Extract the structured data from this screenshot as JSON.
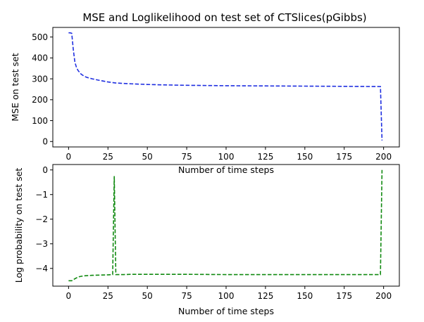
{
  "title": "MSE and Loglikelihood on test set of CTSlices(pGibbs)",
  "chart_data": [
    {
      "type": "line",
      "xlabel": "Number of time steps",
      "ylabel": "MSE on test set",
      "xlim": [
        -10,
        210
      ],
      "ylim": [
        -26,
        546
      ],
      "xticks": [
        0,
        25,
        50,
        75,
        100,
        125,
        150,
        175,
        200
      ],
      "yticks": [
        0,
        100,
        200,
        300,
        400,
        500
      ],
      "grid": false,
      "series": [
        {
          "color": "#1f2fe0",
          "style": "dashed",
          "x": [
            0,
            1,
            2,
            3,
            4,
            5,
            6,
            8,
            10,
            12,
            15,
            20,
            25,
            30,
            40,
            50,
            60,
            75,
            100,
            125,
            150,
            175,
            198,
            199
          ],
          "y": [
            520,
            520,
            518,
            440,
            380,
            355,
            340,
            322,
            312,
            306,
            300,
            292,
            285,
            280,
            276,
            273,
            271,
            269,
            267,
            266,
            265,
            264,
            263,
            5
          ]
        }
      ]
    },
    {
      "type": "line",
      "xlabel": "Number of time steps",
      "ylabel": "Log probability on test set",
      "xlim": [
        -10,
        210
      ],
      "ylim": [
        -4.72,
        0.22
      ],
      "xticks": [
        0,
        25,
        50,
        75,
        100,
        125,
        150,
        175,
        200
      ],
      "yticks": [
        -4,
        -3,
        -2,
        -1,
        0
      ],
      "grid": false,
      "series": [
        {
          "color": "#118a11",
          "style": "dashed",
          "x": [
            0,
            2,
            4,
            6,
            8,
            10,
            15,
            20,
            25,
            28,
            29,
            30,
            31,
            35,
            40,
            50,
            60,
            75,
            100,
            125,
            150,
            175,
            198,
            199
          ],
          "y": [
            -4.5,
            -4.5,
            -4.42,
            -4.35,
            -4.32,
            -4.3,
            -4.28,
            -4.27,
            -4.26,
            -4.25,
            -0.25,
            -4.25,
            -4.25,
            -4.25,
            -4.24,
            -4.24,
            -4.24,
            -4.24,
            -4.25,
            -4.25,
            -4.25,
            -4.25,
            -4.25,
            0
          ]
        }
      ]
    }
  ]
}
